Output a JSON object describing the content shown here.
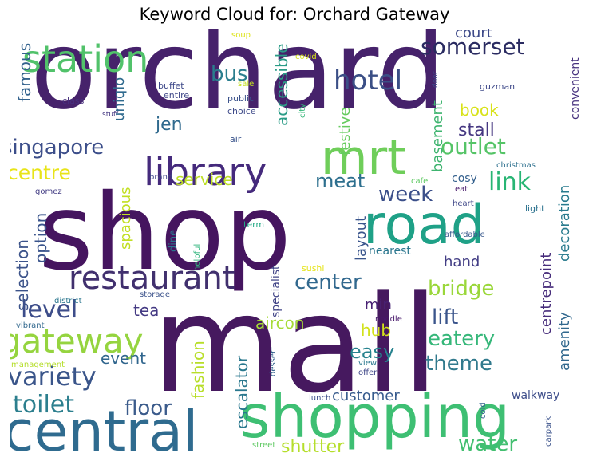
{
  "chart_data": {
    "type": "wordcloud",
    "title": "Keyword Cloud for: Orchard Gateway",
    "colormap": "viridis",
    "background": "#ffffff",
    "words": [
      {
        "text": "orchard",
        "weight": 100,
        "color": "#46226b"
      },
      {
        "text": "shop",
        "weight": 98,
        "color": "#45155f"
      },
      {
        "text": "mall",
        "weight": 95,
        "color": "#46195f"
      },
      {
        "text": "shopping",
        "weight": 52,
        "color": "#3ebf73"
      },
      {
        "text": "central",
        "weight": 50,
        "color": "#2f6b8f"
      },
      {
        "text": "road",
        "weight": 48,
        "color": "#1fa187"
      },
      {
        "text": "mrt",
        "weight": 44,
        "color": "#6fce5a"
      },
      {
        "text": "library",
        "weight": 36,
        "color": "#452a7c"
      },
      {
        "text": "station",
        "weight": 33,
        "color": "#51c26a"
      },
      {
        "text": "restaurant",
        "weight": 30,
        "color": "#41306e"
      },
      {
        "text": "gateway",
        "weight": 28,
        "color": "#95d43f"
      },
      {
        "text": "hotel",
        "weight": 25,
        "color": "#3b4f86"
      },
      {
        "text": "variety",
        "weight": 23,
        "color": "#3a558a"
      },
      {
        "text": "toilet",
        "weight": 21,
        "color": "#2c7f8e"
      },
      {
        "text": "level",
        "weight": 21,
        "color": "#3d4d8a"
      },
      {
        "text": "outlet",
        "weight": 20,
        "color": "#55c467"
      },
      {
        "text": "singapore",
        "weight": 19,
        "color": "#3c4e8a"
      },
      {
        "text": "somerset",
        "weight": 19,
        "color": "#2a2b61"
      },
      {
        "text": "centre",
        "weight": 18,
        "color": "#e8e419"
      },
      {
        "text": "link",
        "weight": 18,
        "color": "#28b574"
      },
      {
        "text": "bus",
        "weight": 17,
        "color": "#2a7e8e"
      },
      {
        "text": "floor",
        "weight": 17,
        "color": "#3b5b8b"
      },
      {
        "text": "week",
        "weight": 17,
        "color": "#3b4f8a"
      },
      {
        "text": "center",
        "weight": 16,
        "color": "#31688e"
      },
      {
        "text": "bridge",
        "weight": 16,
        "color": "#9ad73a"
      },
      {
        "text": "lift",
        "weight": 16,
        "color": "#3a548b"
      },
      {
        "text": "theme",
        "weight": 16,
        "color": "#317a8d"
      },
      {
        "text": "eatery",
        "weight": 16,
        "color": "#35b779"
      },
      {
        "text": "water",
        "weight": 15,
        "color": "#43bf70"
      },
      {
        "text": "easy",
        "weight": 15,
        "color": "#26828e"
      },
      {
        "text": "meat",
        "weight": 15,
        "color": "#2d6f8e"
      },
      {
        "text": "shutter",
        "weight": 14,
        "color": "#b5de2b"
      },
      {
        "text": "service",
        "weight": 14,
        "color": "#bddf26"
      },
      {
        "text": "famous",
        "weight": 14,
        "color": "#33628d"
      },
      {
        "text": "accessible",
        "weight": 14,
        "color": "#2b9c87"
      },
      {
        "text": "jen",
        "weight": 14,
        "color": "#306a8e"
      },
      {
        "text": "basement",
        "weight": 14,
        "color": "#3eb46f"
      },
      {
        "text": "book",
        "weight": 13,
        "color": "#d8e219"
      },
      {
        "text": "court",
        "weight": 13,
        "color": "#3e4a89"
      },
      {
        "text": "stall",
        "weight": 13,
        "color": "#453781"
      },
      {
        "text": "selection",
        "weight": 13,
        "color": "#3c538a"
      },
      {
        "text": "option",
        "weight": 13,
        "color": "#3a548c"
      },
      {
        "text": "uniqlo",
        "weight": 13,
        "color": "#2f6a8e"
      },
      {
        "text": "spacious",
        "weight": 13,
        "color": "#c2df23"
      },
      {
        "text": "festive",
        "weight": 13,
        "color": "#65cb5e"
      },
      {
        "text": "layout",
        "weight": 13,
        "color": "#3a558c"
      },
      {
        "text": "tea",
        "weight": 13,
        "color": "#443a83"
      },
      {
        "text": "event",
        "weight": 13,
        "color": "#31668e"
      },
      {
        "text": "fashion",
        "weight": 13,
        "color": "#b8de29"
      },
      {
        "text": "escalator",
        "weight": 13,
        "color": "#2a788e"
      },
      {
        "text": "aircon",
        "weight": 13,
        "color": "#a5db36"
      },
      {
        "text": "hub",
        "weight": 13,
        "color": "#d2e21b"
      },
      {
        "text": "customer",
        "weight": 12,
        "color": "#375b8d"
      },
      {
        "text": "hand",
        "weight": 12,
        "color": "#433e85"
      },
      {
        "text": "min",
        "weight": 12,
        "color": "#482173"
      },
      {
        "text": "decoration",
        "weight": 12,
        "color": "#297b8e"
      },
      {
        "text": "amenity",
        "weight": 12,
        "color": "#31688e"
      },
      {
        "text": "centrepoint",
        "weight": 12,
        "color": "#472d7b"
      },
      {
        "text": "specialist",
        "weight": 11,
        "color": "#414487"
      },
      {
        "text": "walkway",
        "weight": 10,
        "color": "#3d4d8a"
      },
      {
        "text": "convenient",
        "weight": 10,
        "color": "#46317e"
      },
      {
        "text": "cosy",
        "weight": 10,
        "color": "#34608d"
      },
      {
        "text": "nearest",
        "weight": 10,
        "color": "#2a768e"
      },
      {
        "text": "dine",
        "weight": 9,
        "color": "#2b758e"
      },
      {
        "text": "soup",
        "weight": 8,
        "color": "#dde318"
      },
      {
        "text": "covid",
        "weight": 8,
        "color": "#d5e21a"
      },
      {
        "text": "buffet",
        "weight": 8,
        "color": "#3e4989"
      },
      {
        "text": "sale",
        "weight": 8,
        "color": "#c5e021"
      },
      {
        "text": "entire",
        "weight": 8,
        "color": "#3f4889"
      },
      {
        "text": "public",
        "weight": 8,
        "color": "#3b528b"
      },
      {
        "text": "choice",
        "weight": 8,
        "color": "#3e4a89"
      },
      {
        "text": "class",
        "weight": 8,
        "color": "#472f7d"
      },
      {
        "text": "door",
        "weight": 7,
        "color": "#404688"
      },
      {
        "text": "guzman",
        "weight": 8,
        "color": "#3e4989"
      },
      {
        "text": "city",
        "weight": 8,
        "color": "#35b779"
      },
      {
        "text": "stuff",
        "weight": 7,
        "color": "#453882"
      },
      {
        "text": "air",
        "weight": 8,
        "color": "#3a548c"
      },
      {
        "text": "brand",
        "weight": 7,
        "color": "#404688"
      },
      {
        "text": "christmas",
        "weight": 8,
        "color": "#2d708e"
      },
      {
        "text": "cafe",
        "weight": 8,
        "color": "#5ec962"
      },
      {
        "text": "eat",
        "weight": 7,
        "color": "#481a6c"
      },
      {
        "text": "gomez",
        "weight": 7,
        "color": "#433d84"
      },
      {
        "text": "heart",
        "weight": 7,
        "color": "#3f4788"
      },
      {
        "text": "term",
        "weight": 8,
        "color": "#22a884"
      },
      {
        "text": "light",
        "weight": 8,
        "color": "#2c728e"
      },
      {
        "text": "affordable",
        "weight": 7,
        "color": "#38588c"
      },
      {
        "text": "helpful",
        "weight": 7,
        "color": "#2fb47c"
      },
      {
        "text": "sushi",
        "weight": 7,
        "color": "#e5e419"
      },
      {
        "text": "district",
        "weight": 7,
        "color": "#2a768e"
      },
      {
        "text": "storage",
        "weight": 7,
        "color": "#3b528b"
      },
      {
        "text": "noodle",
        "weight": 7,
        "color": "#48196b"
      },
      {
        "text": "vibrant",
        "weight": 7,
        "color": "#31688e"
      },
      {
        "text": "management",
        "weight": 7,
        "color": "#b5de2b"
      },
      {
        "text": "dessert",
        "weight": 7,
        "color": "#33628d"
      },
      {
        "text": "view",
        "weight": 7,
        "color": "#2a788e"
      },
      {
        "text": "offer",
        "weight": 7,
        "color": "#3f4788"
      },
      {
        "text": "lunch",
        "weight": 7,
        "color": "#3d4e8a"
      },
      {
        "text": "cold",
        "weight": 7,
        "color": "#33628d"
      },
      {
        "text": "carpark",
        "weight": 7,
        "color": "#3b528b"
      },
      {
        "text": "street",
        "weight": 7,
        "color": "#5ec962"
      }
    ]
  }
}
